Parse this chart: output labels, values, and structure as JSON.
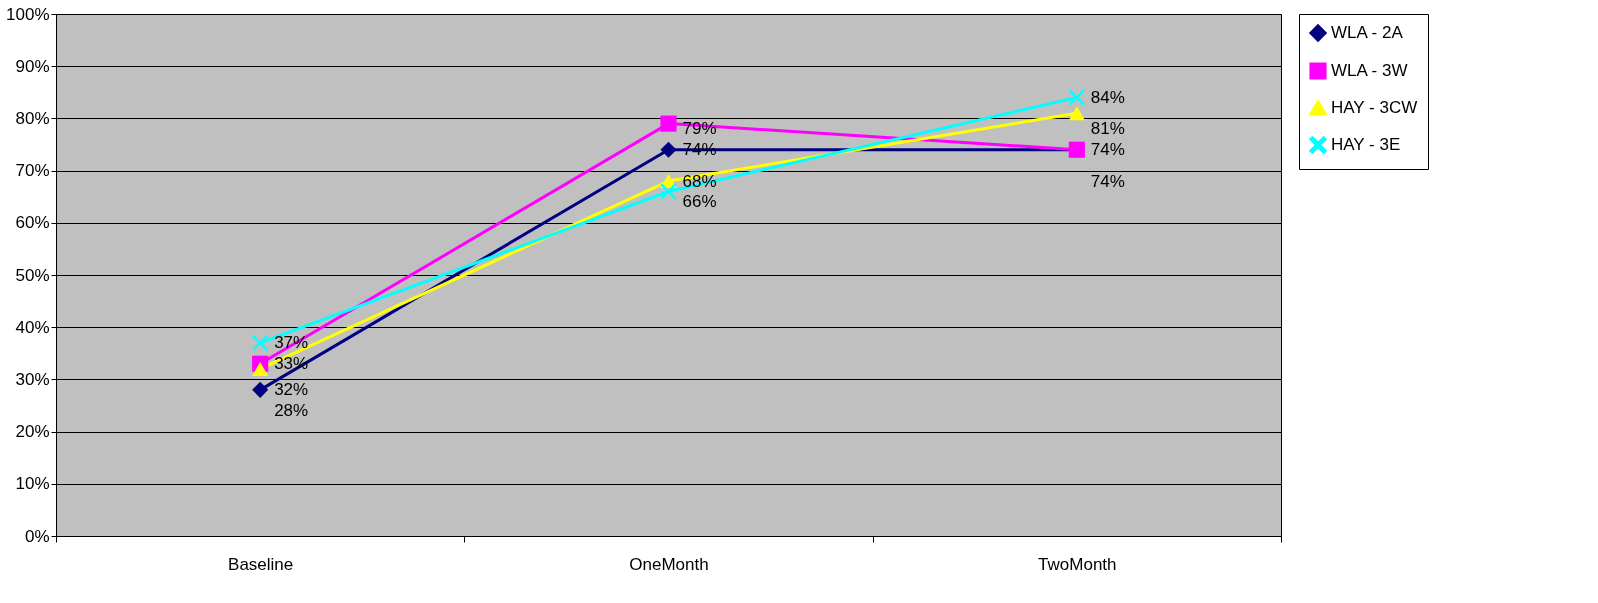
{
  "chart_data": {
    "type": "line",
    "categories": [
      "Baseline",
      "OneMonth",
      "TwoMonth"
    ],
    "series": [
      {
        "name": "WLA - 2A",
        "color": "#000080",
        "marker": "diamond",
        "values": [
          28,
          74,
          74
        ],
        "value_labels": [
          "28%",
          "74%",
          "74%"
        ]
      },
      {
        "name": "WLA - 3W",
        "color": "#ff00ff",
        "marker": "square",
        "values": [
          33,
          79,
          74
        ],
        "value_labels": [
          "33%",
          "79%",
          "74%"
        ]
      },
      {
        "name": "HAY - 3CW",
        "color": "#ffff00",
        "marker": "triangle",
        "values": [
          32,
          68,
          81
        ],
        "value_labels": [
          "32%",
          "68%",
          "81%"
        ]
      },
      {
        "name": "HAY - 3E",
        "color": "#00ffff",
        "marker": "cross",
        "values": [
          37,
          66,
          84
        ],
        "value_labels": [
          "37%",
          "66%",
          "84%"
        ]
      }
    ],
    "ylim": [
      0,
      100
    ],
    "yticks": [
      {
        "value": 0,
        "label": "0%"
      },
      {
        "value": 10,
        "label": "10%"
      },
      {
        "value": 20,
        "label": "20%"
      },
      {
        "value": 30,
        "label": "30%"
      },
      {
        "value": 40,
        "label": "40%"
      },
      {
        "value": 50,
        "label": "50%"
      },
      {
        "value": 60,
        "label": "60%"
      },
      {
        "value": 70,
        "label": "70%"
      },
      {
        "value": 80,
        "label": "80%"
      },
      {
        "value": 90,
        "label": "90%"
      },
      {
        "value": 100,
        "label": "100%"
      }
    ],
    "grid": "y",
    "legend": "right",
    "line_style": "solid"
  }
}
